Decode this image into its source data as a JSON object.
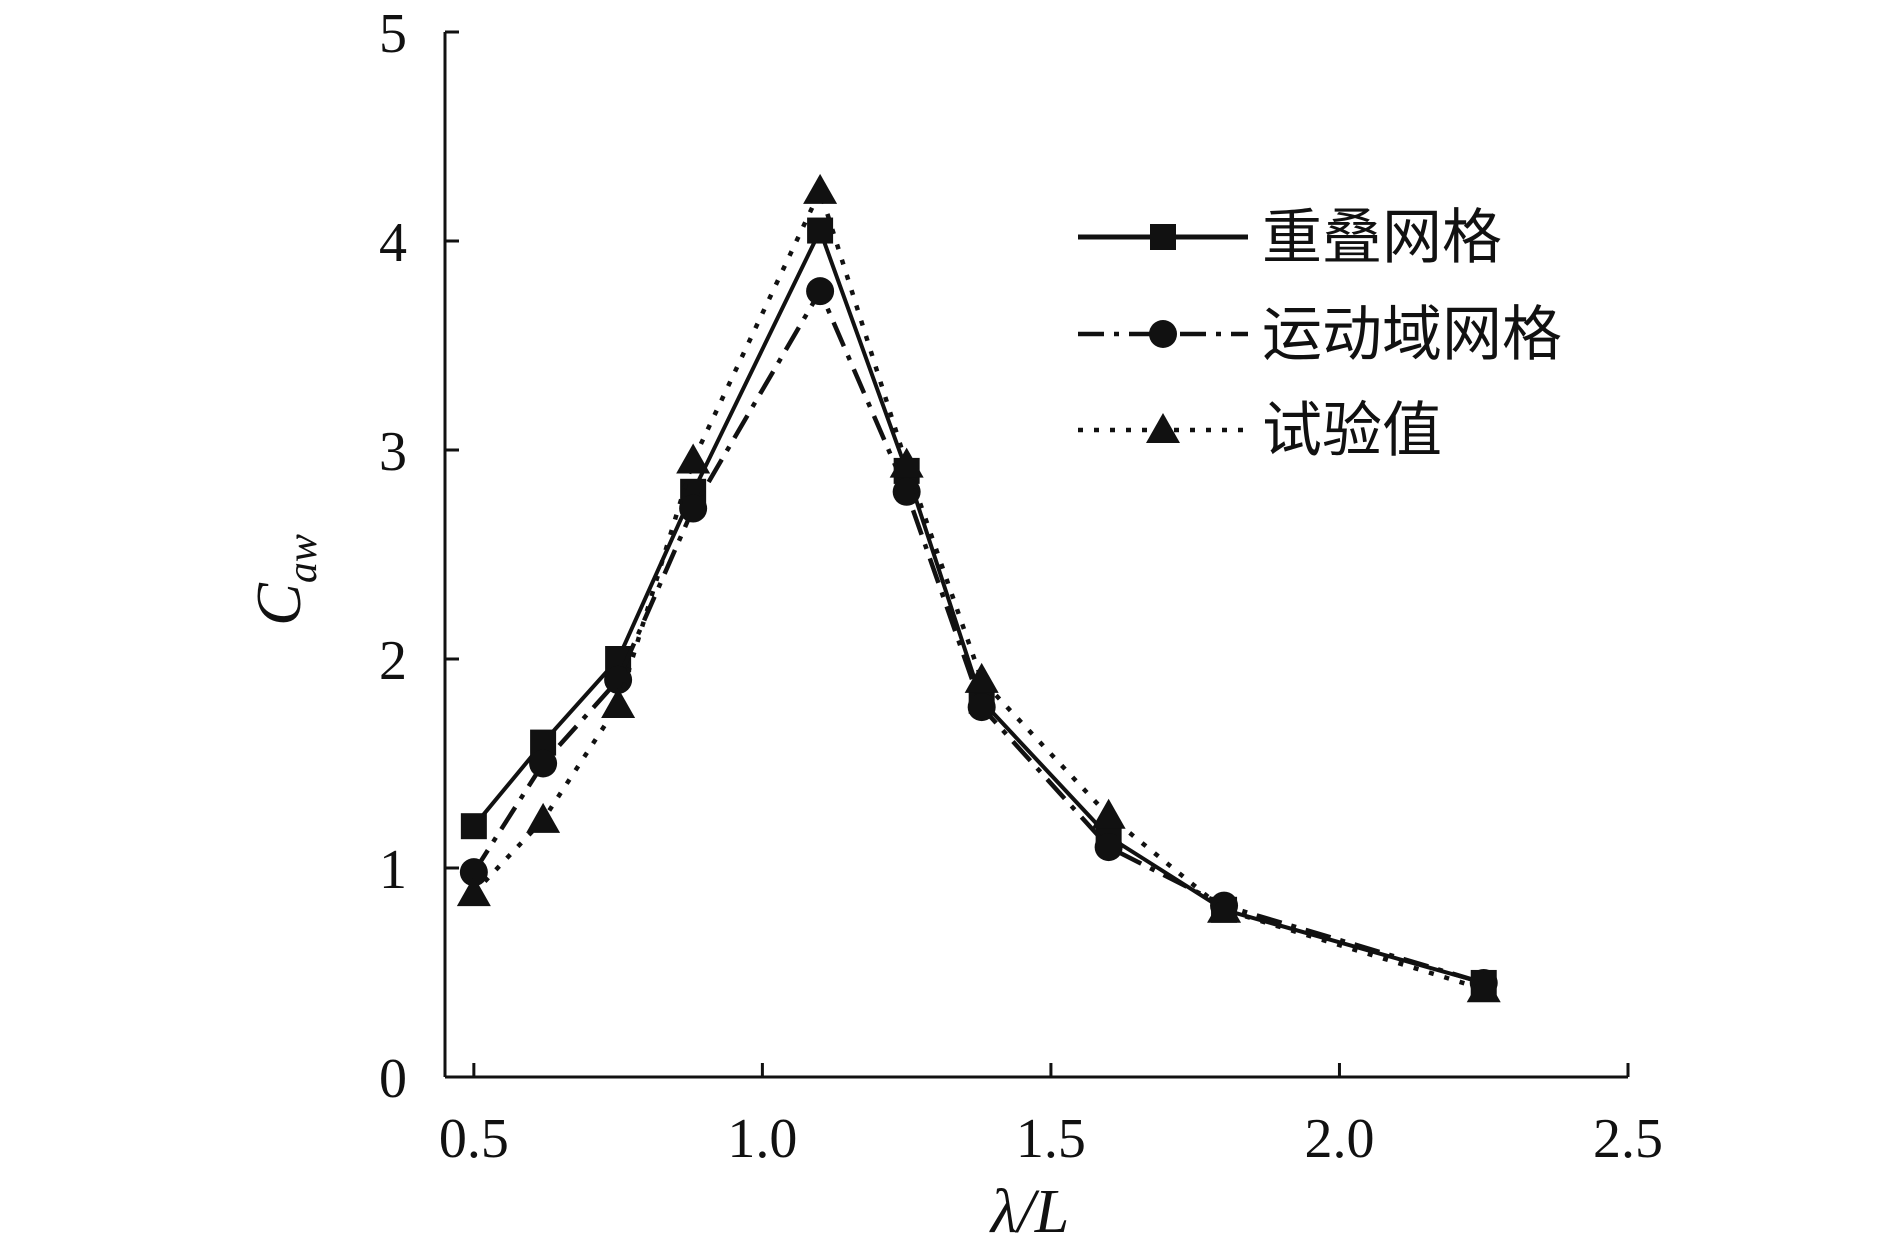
{
  "chart_data": {
    "type": "line",
    "xlabel": "λ/L",
    "ylabel_main": "C",
    "ylabel_sub": "aw",
    "xlim": [
      0.45,
      2.5
    ],
    "ylim": [
      0,
      5
    ],
    "xticks": [
      "0.5",
      "1.0",
      "1.5",
      "2.0",
      "2.5"
    ],
    "xtick_values": [
      0.5,
      1.0,
      1.5,
      2.0,
      2.5
    ],
    "yticks": [
      "0",
      "1",
      "2",
      "3",
      "4",
      "5"
    ],
    "ytick_values": [
      0,
      1,
      2,
      3,
      4,
      5
    ],
    "grid": false,
    "legend_position": "top-right",
    "series": [
      {
        "name": "重叠网格",
        "marker": "square",
        "linestyle": "solid",
        "color": "#111111",
        "x": [
          0.5,
          0.62,
          0.75,
          0.88,
          1.1,
          1.25,
          1.38,
          1.6,
          1.8,
          2.25
        ],
        "y": [
          1.2,
          1.6,
          2.0,
          2.8,
          4.05,
          2.9,
          1.8,
          1.15,
          0.8,
          0.45
        ]
      },
      {
        "name": "运动域网格",
        "marker": "circle",
        "linestyle": "dashdot",
        "color": "#111111",
        "x": [
          0.5,
          0.62,
          0.75,
          0.88,
          1.1,
          1.25,
          1.38,
          1.6,
          1.8,
          2.25
        ],
        "y": [
          0.98,
          1.5,
          1.9,
          2.72,
          3.76,
          2.8,
          1.77,
          1.1,
          0.82,
          0.45
        ]
      },
      {
        "name": "试验值",
        "marker": "triangle",
        "linestyle": "dotted",
        "color": "#111111",
        "x": [
          0.5,
          0.62,
          0.75,
          0.88,
          1.1,
          1.25,
          1.38,
          1.6,
          1.8,
          2.25
        ],
        "y": [
          0.88,
          1.23,
          1.78,
          2.95,
          4.24,
          2.93,
          1.9,
          1.25,
          0.8,
          0.42
        ]
      }
    ]
  }
}
